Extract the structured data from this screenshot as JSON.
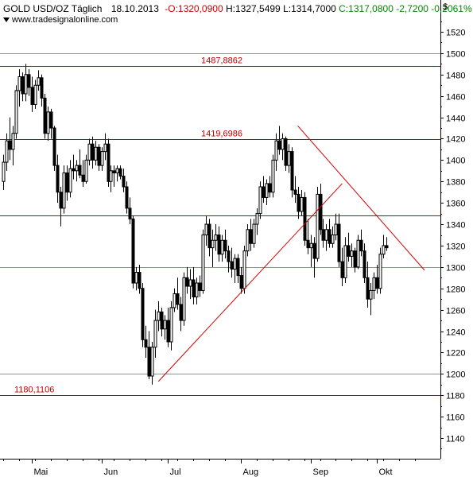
{
  "header": {
    "instrument": "GOLD USD/OZ Täglich",
    "date": "18.10.2013",
    "open": "O:1320,0900",
    "high": "H:1327,5499",
    "low": "L:1314,7000",
    "close": "C:1317,0800",
    "change": "-2,7200",
    "change_pct": "-0,2061%",
    "currency": "$"
  },
  "watermark": "www.tradesignalonline.com",
  "colors": {
    "up": "#ffffff",
    "down": "#000000",
    "level_lines": "#c00000",
    "trend_lines": "#d40000",
    "grid": "#c8c8c8"
  },
  "chart_data": {
    "type": "candlestick",
    "y_range": [
      1120,
      1535
    ],
    "y_ticks": [
      "1140",
      "1160",
      "1180",
      "1200",
      "1220",
      "1240",
      "1260",
      "1280",
      "1300",
      "1320",
      "1340",
      "1360",
      "1380",
      "1400",
      "1420",
      "1440",
      "1460",
      "1480",
      "1500",
      "1520"
    ],
    "x_ticks": [
      {
        "label": "Mai",
        "day": 12
      },
      {
        "label": "Jun",
        "day": 34
      },
      {
        "label": "Jul",
        "day": 55
      },
      {
        "label": "Aug",
        "day": 78
      },
      {
        "label": "Sep",
        "day": 100
      },
      {
        "label": "Okt",
        "day": 121
      }
    ],
    "x_range": [
      3,
      137
    ],
    "levels": [
      {
        "value": 1487.8862,
        "label": "1487,8862"
      },
      {
        "value": 1419.6986,
        "label": "1419,6986"
      },
      {
        "value": 1180.1106,
        "label": "1180,1106"
      }
    ],
    "extra_levels": [
      1348,
      1500,
      1300,
      1200
    ],
    "trendlines": [
      {
        "from": [
          52,
          1193
        ],
        "to": [
          110,
          1378
        ]
      },
      {
        "from": [
          96,
          1432
        ],
        "to": [
          136,
          1297
        ]
      }
    ],
    "candles": [
      [
        3,
        1380,
        1405,
        1372,
        1398
      ],
      [
        4,
        1398,
        1425,
        1390,
        1418
      ],
      [
        5,
        1418,
        1440,
        1400,
        1410
      ],
      [
        6,
        1410,
        1432,
        1395,
        1425
      ],
      [
        7,
        1425,
        1470,
        1420,
        1465
      ],
      [
        8,
        1465,
        1485,
        1450,
        1478
      ],
      [
        9,
        1478,
        1482,
        1455,
        1462
      ],
      [
        10,
        1462,
        1490,
        1455,
        1480
      ],
      [
        11,
        1480,
        1485,
        1460,
        1468
      ],
      [
        12,
        1468,
        1478,
        1445,
        1452
      ],
      [
        13,
        1452,
        1475,
        1448,
        1470
      ],
      [
        14,
        1470,
        1484,
        1465,
        1477
      ],
      [
        15,
        1477,
        1480,
        1450,
        1458
      ],
      [
        16,
        1458,
        1462,
        1420,
        1425
      ],
      [
        17,
        1425,
        1450,
        1418,
        1445
      ],
      [
        18,
        1445,
        1448,
        1420,
        1430
      ],
      [
        19,
        1430,
        1432,
        1390,
        1395
      ],
      [
        20,
        1395,
        1405,
        1360,
        1370
      ],
      [
        21,
        1370,
        1375,
        1338,
        1355
      ],
      [
        22,
        1355,
        1395,
        1350,
        1388
      ],
      [
        23,
        1388,
        1395,
        1362,
        1370
      ],
      [
        24,
        1370,
        1400,
        1365,
        1392
      ],
      [
        25,
        1392,
        1405,
        1382,
        1390
      ],
      [
        26,
        1390,
        1400,
        1380,
        1395
      ],
      [
        27,
        1395,
        1410,
        1383,
        1386
      ],
      [
        28,
        1386,
        1400,
        1375,
        1380
      ],
      [
        29,
        1380,
        1405,
        1378,
        1400
      ],
      [
        30,
        1400,
        1420,
        1395,
        1415
      ],
      [
        31,
        1415,
        1422,
        1392,
        1400
      ],
      [
        32,
        1400,
        1418,
        1395,
        1412
      ],
      [
        33,
        1412,
        1415,
        1390,
        1395
      ],
      [
        34,
        1395,
        1412,
        1390,
        1408
      ],
      [
        35,
        1408,
        1425,
        1400,
        1415
      ],
      [
        36,
        1415,
        1420,
        1375,
        1380
      ],
      [
        37,
        1380,
        1395,
        1370,
        1390
      ],
      [
        38,
        1390,
        1395,
        1375,
        1388
      ],
      [
        39,
        1388,
        1395,
        1380,
        1392
      ],
      [
        40,
        1392,
        1395,
        1382,
        1385
      ],
      [
        41,
        1385,
        1392,
        1370,
        1375
      ],
      [
        42,
        1375,
        1380,
        1350,
        1355
      ],
      [
        43,
        1355,
        1365,
        1340,
        1345
      ],
      [
        44,
        1345,
        1348,
        1280,
        1285
      ],
      [
        45,
        1285,
        1300,
        1278,
        1295
      ],
      [
        46,
        1295,
        1302,
        1275,
        1280
      ],
      [
        47,
        1280,
        1285,
        1225,
        1232
      ],
      [
        48,
        1232,
        1245,
        1215,
        1225
      ],
      [
        49,
        1225,
        1240,
        1195,
        1198
      ],
      [
        50,
        1198,
        1230,
        1190,
        1225
      ],
      [
        51,
        1225,
        1260,
        1215,
        1250
      ],
      [
        52,
        1250,
        1268,
        1240,
        1258
      ],
      [
        53,
        1258,
        1262,
        1235,
        1242
      ],
      [
        54,
        1242,
        1255,
        1232,
        1250
      ],
      [
        55,
        1250,
        1262,
        1225,
        1230
      ],
      [
        56,
        1230,
        1268,
        1222,
        1262
      ],
      [
        57,
        1262,
        1280,
        1258,
        1275
      ],
      [
        58,
        1275,
        1290,
        1260,
        1265
      ],
      [
        59,
        1265,
        1272,
        1240,
        1250
      ],
      [
        60,
        1250,
        1295,
        1245,
        1290
      ],
      [
        61,
        1290,
        1300,
        1275,
        1282
      ],
      [
        62,
        1282,
        1298,
        1270,
        1288
      ],
      [
        63,
        1288,
        1300,
        1265,
        1272
      ],
      [
        64,
        1272,
        1290,
        1265,
        1285
      ],
      [
        65,
        1285,
        1292,
        1272,
        1278
      ],
      [
        66,
        1278,
        1335,
        1275,
        1330
      ],
      [
        67,
        1330,
        1348,
        1320,
        1340
      ],
      [
        68,
        1340,
        1345,
        1310,
        1318
      ],
      [
        69,
        1318,
        1335,
        1300,
        1325
      ],
      [
        70,
        1325,
        1340,
        1315,
        1330
      ],
      [
        71,
        1330,
        1338,
        1305,
        1312
      ],
      [
        72,
        1312,
        1330,
        1305,
        1325
      ],
      [
        73,
        1325,
        1335,
        1308,
        1315
      ],
      [
        74,
        1315,
        1320,
        1295,
        1305
      ],
      [
        75,
        1305,
        1318,
        1290,
        1298
      ],
      [
        76,
        1298,
        1312,
        1285,
        1308
      ],
      [
        77,
        1308,
        1312,
        1285,
        1292
      ],
      [
        78,
        1292,
        1300,
        1275,
        1280
      ],
      [
        79,
        1280,
        1320,
        1275,
        1315
      ],
      [
        80,
        1315,
        1340,
        1310,
        1335
      ],
      [
        81,
        1335,
        1345,
        1315,
        1322
      ],
      [
        82,
        1322,
        1345,
        1318,
        1340
      ],
      [
        83,
        1340,
        1355,
        1330,
        1350
      ],
      [
        84,
        1350,
        1380,
        1345,
        1375
      ],
      [
        85,
        1375,
        1385,
        1360,
        1365
      ],
      [
        86,
        1365,
        1382,
        1358,
        1378
      ],
      [
        87,
        1378,
        1385,
        1365,
        1370
      ],
      [
        88,
        1370,
        1405,
        1365,
        1400
      ],
      [
        89,
        1400,
        1425,
        1390,
        1418
      ],
      [
        90,
        1418,
        1432,
        1405,
        1410
      ],
      [
        91,
        1410,
        1425,
        1400,
        1420
      ],
      [
        92,
        1420,
        1422,
        1390,
        1395
      ],
      [
        93,
        1395,
        1415,
        1388,
        1408
      ],
      [
        94,
        1408,
        1412,
        1365,
        1372
      ],
      [
        95,
        1372,
        1385,
        1360,
        1368
      ],
      [
        96,
        1368,
        1375,
        1345,
        1352
      ],
      [
        97,
        1352,
        1372,
        1348,
        1365
      ],
      [
        98,
        1365,
        1370,
        1320,
        1325
      ],
      [
        99,
        1325,
        1345,
        1312,
        1318
      ],
      [
        100,
        1318,
        1330,
        1300,
        1322
      ],
      [
        101,
        1322,
        1328,
        1290,
        1308
      ],
      [
        102,
        1308,
        1375,
        1305,
        1368
      ],
      [
        103,
        1368,
        1378,
        1330,
        1335
      ],
      [
        104,
        1335,
        1345,
        1318,
        1325
      ],
      [
        105,
        1325,
        1340,
        1315,
        1335
      ],
      [
        106,
        1335,
        1345,
        1318,
        1322
      ],
      [
        107,
        1322,
        1338,
        1318,
        1330
      ],
      [
        108,
        1330,
        1350,
        1325,
        1340
      ],
      [
        109,
        1340,
        1350,
        1300,
        1305
      ],
      [
        110,
        1305,
        1318,
        1282,
        1290
      ],
      [
        111,
        1290,
        1328,
        1285,
        1320
      ],
      [
        112,
        1320,
        1332,
        1305,
        1310
      ],
      [
        113,
        1310,
        1322,
        1300,
        1315
      ],
      [
        114,
        1315,
        1318,
        1295,
        1300
      ],
      [
        115,
        1300,
        1330,
        1298,
        1325
      ],
      [
        116,
        1325,
        1335,
        1310,
        1315
      ],
      [
        117,
        1315,
        1322,
        1285,
        1290
      ],
      [
        118,
        1290,
        1305,
        1262,
        1270
      ],
      [
        119,
        1270,
        1285,
        1255,
        1278
      ],
      [
        120,
        1278,
        1295,
        1270,
        1290
      ],
      [
        121,
        1290,
        1302,
        1275,
        1280
      ],
      [
        122,
        1280,
        1318,
        1275,
        1312
      ],
      [
        123,
        1312,
        1330,
        1308,
        1320
      ],
      [
        124,
        1320,
        1328,
        1315,
        1318
      ]
    ]
  }
}
